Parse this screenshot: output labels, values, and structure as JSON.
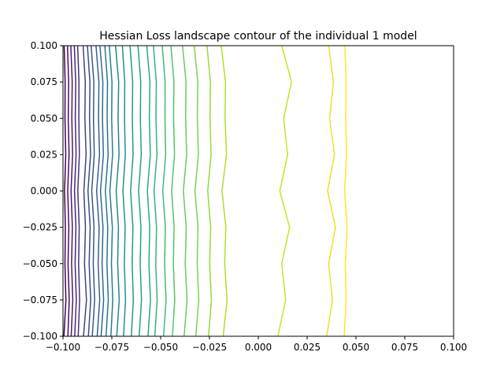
{
  "chart_data": {
    "type": "contour",
    "title": "Hessian Loss landscape contour of the individual 1 model",
    "xlabel": "",
    "ylabel": "",
    "xlim": [
      -0.1,
      0.1
    ],
    "ylim": [
      -0.1,
      0.1
    ],
    "x_ticks": [
      -0.1,
      -0.075,
      -0.05,
      -0.025,
      0.0,
      0.025,
      0.05,
      0.075,
      0.1
    ],
    "x_tick_labels": [
      "−0.100",
      "−0.075",
      "−0.050",
      "−0.025",
      "0.000",
      "0.025",
      "0.050",
      "0.075",
      "0.100"
    ],
    "y_ticks": [
      -0.1,
      -0.075,
      -0.05,
      -0.025,
      0.0,
      0.025,
      0.05,
      0.075,
      0.1
    ],
    "y_tick_labels": [
      "−0.100",
      "−0.075",
      "−0.050",
      "−0.025",
      "0.000",
      "0.025",
      "0.050",
      "0.075",
      "0.100"
    ],
    "colormap": "viridis",
    "grid": false,
    "legend": false,
    "contour_levels": [
      {
        "level": 0,
        "x_at_y_levels": [
          -0.0995,
          -0.0985,
          -0.099,
          -0.0988,
          -0.0992,
          -0.0986,
          -0.099,
          -0.0989,
          -0.0994
        ]
      },
      {
        "level": 1,
        "x_at_y_levels": [
          -0.0975,
          -0.0968,
          -0.0974,
          -0.097,
          -0.0976,
          -0.0969,
          -0.0973,
          -0.0971,
          -0.0977
        ]
      },
      {
        "level": 2,
        "x_at_y_levels": [
          -0.0958,
          -0.095,
          -0.0956,
          -0.0952,
          -0.0959,
          -0.0951,
          -0.0955,
          -0.0953,
          -0.096
        ]
      },
      {
        "level": 3,
        "x_at_y_levels": [
          -0.094,
          -0.0932,
          -0.0938,
          -0.0934,
          -0.0941,
          -0.0933,
          -0.0937,
          -0.0935,
          -0.0942
        ]
      },
      {
        "level": 4,
        "x_at_y_levels": [
          -0.0922,
          -0.0915,
          -0.092,
          -0.0917,
          -0.0924,
          -0.0916,
          -0.0919,
          -0.0918,
          -0.0925
        ]
      },
      {
        "level": 5,
        "x_at_y_levels": [
          -0.0895,
          -0.088,
          -0.089,
          -0.0885,
          -0.0893,
          -0.0882,
          -0.0888,
          -0.0886,
          -0.0897
        ]
      },
      {
        "level": 6,
        "x_at_y_levels": [
          -0.087,
          -0.0858,
          -0.0866,
          -0.0861,
          -0.0872,
          -0.0859,
          -0.0864,
          -0.0862,
          -0.0875
        ]
      },
      {
        "level": 7,
        "x_at_y_levels": [
          -0.085,
          -0.0838,
          -0.0845,
          -0.0841,
          -0.0853,
          -0.084,
          -0.0844,
          -0.0842,
          -0.0856
        ]
      },
      {
        "level": 8,
        "x_at_y_levels": [
          -0.0825,
          -0.0812,
          -0.082,
          -0.0815,
          -0.0828,
          -0.0813,
          -0.0818,
          -0.0816,
          -0.0831
        ]
      },
      {
        "level": 9,
        "x_at_y_levels": [
          -0.0805,
          -0.0792,
          -0.08,
          -0.0795,
          -0.0808,
          -0.0793,
          -0.0798,
          -0.0796,
          -0.0811
        ]
      },
      {
        "level": 10,
        "x_at_y_levels": [
          -0.078,
          -0.0768,
          -0.0775,
          -0.0771,
          -0.0783,
          -0.0769,
          -0.0774,
          -0.0772,
          -0.0786
        ]
      },
      {
        "level": 11,
        "x_at_y_levels": [
          -0.0755,
          -0.0745,
          -0.0752,
          -0.0747,
          -0.076,
          -0.0746,
          -0.0751,
          -0.0749,
          -0.0763
        ]
      },
      {
        "level": 12,
        "x_at_y_levels": [
          -0.0725,
          -0.0712,
          -0.072,
          -0.0716,
          -0.0728,
          -0.0713,
          -0.0718,
          -0.0715,
          -0.0731
        ]
      },
      {
        "level": 13,
        "x_at_y_levels": [
          -0.069,
          -0.068,
          -0.0686,
          -0.0682,
          -0.0693,
          -0.0681,
          -0.0685,
          -0.0684,
          -0.0696
        ]
      },
      {
        "level": 14,
        "x_at_y_levels": [
          -0.065,
          -0.064,
          -0.0646,
          -0.0642,
          -0.0654,
          -0.0641,
          -0.0645,
          -0.0643,
          -0.0657
        ]
      },
      {
        "level": 15,
        "x_at_y_levels": [
          -0.061,
          -0.0598,
          -0.0605,
          -0.0601,
          -0.0613,
          -0.0599,
          -0.0604,
          -0.0602,
          -0.0616
        ]
      },
      {
        "level": 16,
        "x_at_y_levels": [
          -0.0565,
          -0.0552,
          -0.056,
          -0.0556,
          -0.0568,
          -0.0553,
          -0.0558,
          -0.0555,
          -0.0571
        ]
      },
      {
        "level": 17,
        "x_at_y_levels": [
          -0.053,
          -0.0518,
          -0.0525,
          -0.0521,
          -0.0534,
          -0.0519,
          -0.0524,
          -0.0522,
          -0.0537
        ]
      },
      {
        "level": 18,
        "x_at_y_levels": [
          -0.0485,
          -0.0472,
          -0.048,
          -0.0476,
          -0.0489,
          -0.0474,
          -0.0478,
          -0.0477,
          -0.0492
        ]
      },
      {
        "level": 19,
        "x_at_y_levels": [
          -0.044,
          -0.0428,
          -0.0435,
          -0.0431,
          -0.0444,
          -0.0429,
          -0.0434,
          -0.0432,
          -0.0447
        ]
      },
      {
        "level": 20,
        "x_at_y_levels": [
          -0.038,
          -0.0365,
          -0.0374,
          -0.0369,
          -0.0384,
          -0.0367,
          -0.0372,
          -0.037,
          -0.0388
        ]
      },
      {
        "level": 21,
        "x_at_y_levels": [
          -0.032,
          -0.0305,
          -0.0313,
          -0.0309,
          -0.0324,
          -0.0307,
          -0.0312,
          -0.031,
          -0.0328
        ]
      },
      {
        "level": 22,
        "x_at_y_levels": [
          -0.0255,
          -0.024,
          -0.0249,
          -0.0244,
          -0.0259,
          -0.0242,
          -0.0247,
          -0.0245,
          -0.0263
        ]
      },
      {
        "level": 23,
        "x_at_y_levels": [
          -0.018,
          -0.016,
          -0.0172,
          -0.0166,
          -0.0186,
          -0.0163,
          -0.017,
          -0.0168,
          -0.019
        ]
      },
      {
        "level": 24,
        "x_at_y_levels": [
          0.01,
          0.014,
          0.012,
          0.016,
          0.011,
          0.015,
          0.013,
          0.017,
          0.012
        ]
      },
      {
        "level": 25,
        "x_at_y_levels": [
          0.035,
          0.038,
          0.036,
          0.0395,
          0.0355,
          0.039,
          0.0365,
          0.0385,
          0.036
        ]
      },
      {
        "level": 26,
        "x_at_y_levels": [
          0.044,
          0.045,
          0.0445,
          0.0455,
          0.0442,
          0.0452,
          0.0447,
          0.045,
          0.0443
        ]
      }
    ]
  }
}
